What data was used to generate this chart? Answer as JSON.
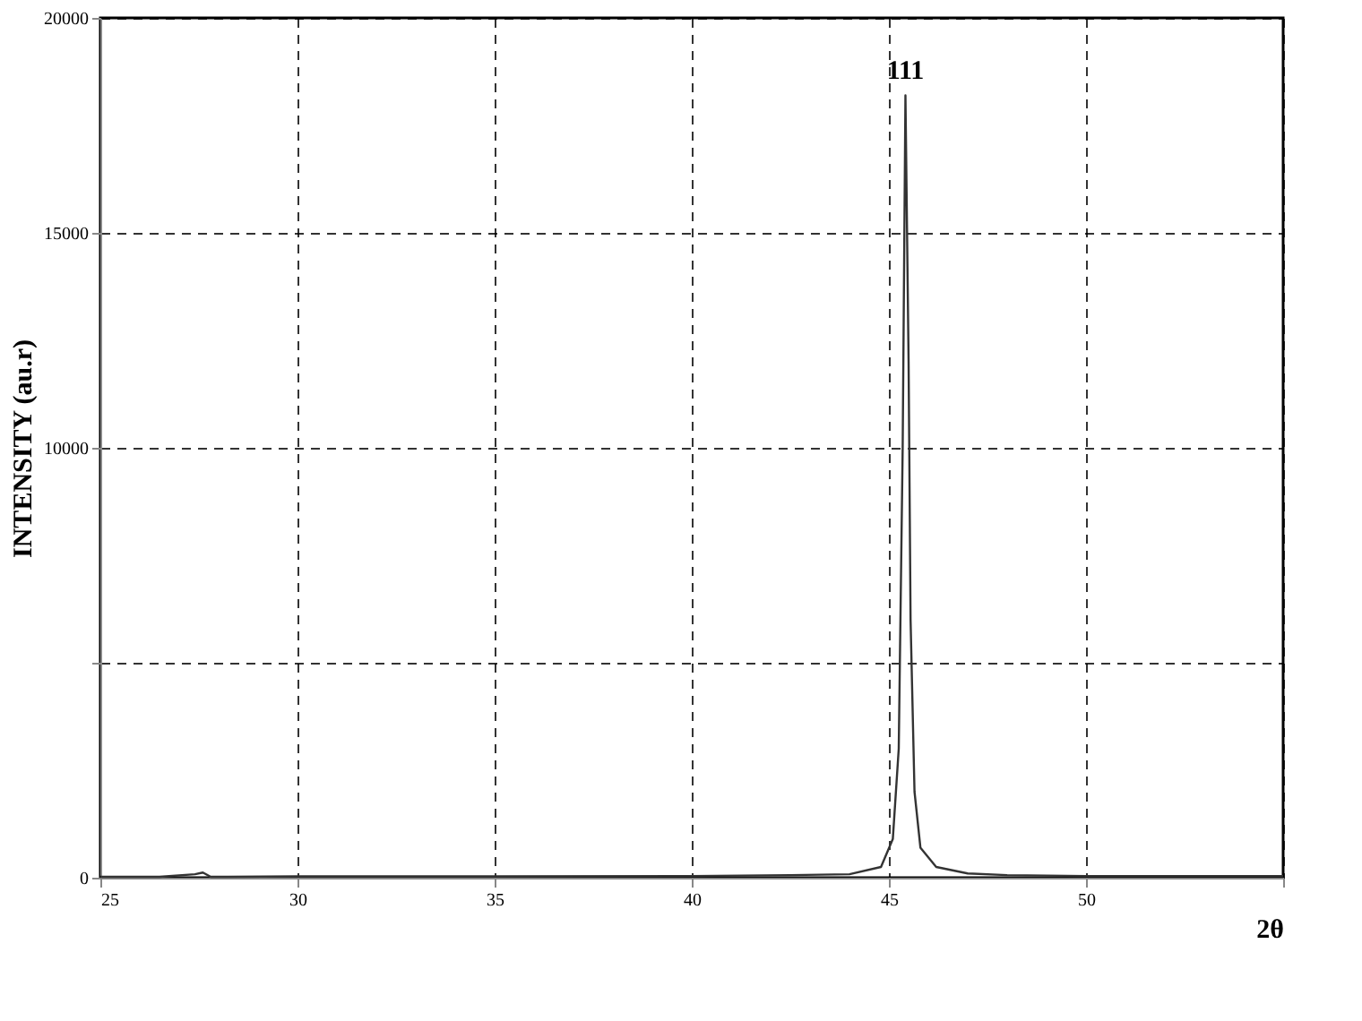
{
  "chart_data": {
    "type": "line",
    "xlabel": "2θ",
    "ylabel": "INTENSITY (au.r)",
    "x": [
      25,
      26.5,
      27.4,
      27.6,
      27.8,
      30,
      35,
      40,
      42.5,
      44,
      44.8,
      45.1,
      45.25,
      45.35,
      45.42,
      45.5,
      45.55,
      45.65,
      45.8,
      46.2,
      47,
      48,
      50,
      55
    ],
    "series": [
      {
        "color": "#333333",
        "values": [
          20,
          20,
          80,
          120,
          20,
          30,
          30,
          40,
          60,
          80,
          250,
          900,
          3000,
          10000,
          18200,
          12000,
          6000,
          2000,
          700,
          250,
          100,
          60,
          40,
          40
        ]
      }
    ],
    "xlim": [
      25,
      55
    ],
    "xticks": [
      25,
      30,
      35,
      40,
      45,
      50,
      {
        "value": 55,
        "label": null
      }
    ],
    "ylim": [
      0,
      20000
    ],
    "yticks": [
      0,
      {
        "value": 5000,
        "label": null
      },
      10000,
      15000,
      20000
    ],
    "grid": true,
    "annotations": [
      {
        "text": "111",
        "x": 45.42,
        "y": 18200
      }
    ]
  }
}
